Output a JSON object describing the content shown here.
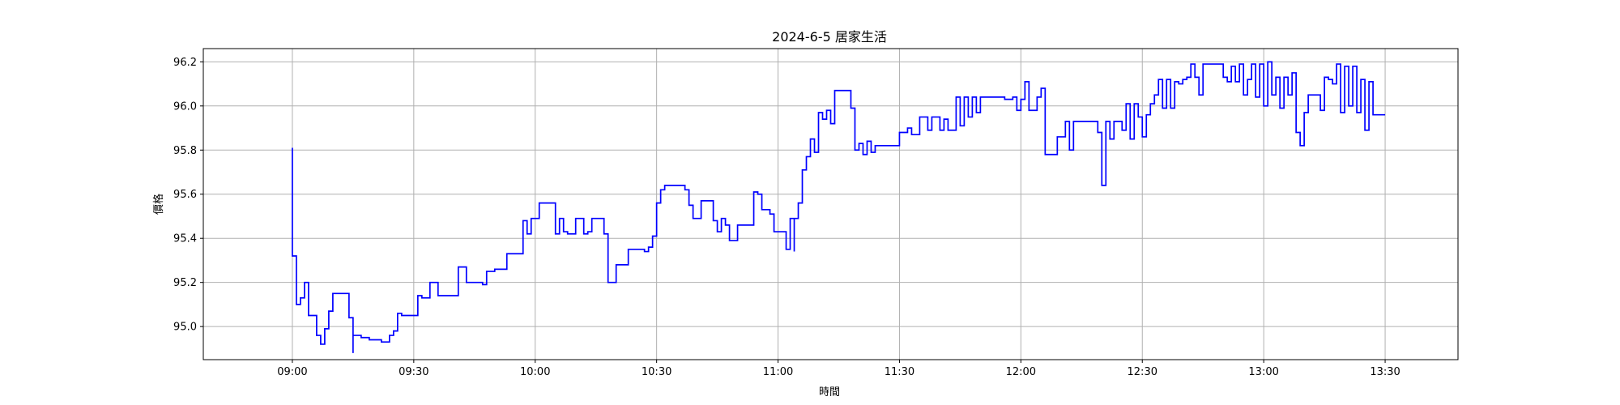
{
  "chart_data": {
    "type": "line",
    "title": "2024-6-5 居家生活",
    "xlabel": "時間",
    "ylabel": "價格",
    "xlim": [
      "08:38",
      "13:48"
    ],
    "ylim": [
      94.85,
      96.26
    ],
    "x_ticks": [
      "09:00",
      "09:30",
      "10:00",
      "10:30",
      "11:00",
      "11:30",
      "12:00",
      "12:30",
      "13:00",
      "13:30"
    ],
    "y_ticks": [
      "95.0",
      "95.2",
      "95.4",
      "95.6",
      "95.8",
      "96.0",
      "96.2"
    ],
    "grid": true,
    "step": true,
    "series": [
      {
        "color": "#0000ff",
        "points": [
          [
            "09:00",
            95.81
          ],
          [
            "09:00",
            95.32
          ],
          [
            "09:01",
            95.25
          ],
          [
            "09:01",
            95.1
          ],
          [
            "09:02",
            95.13
          ],
          [
            "09:03",
            95.2
          ],
          [
            "09:04",
            95.05
          ],
          [
            "09:06",
            94.96
          ],
          [
            "09:07",
            94.95
          ],
          [
            "09:07",
            94.92
          ],
          [
            "09:08",
            94.99
          ],
          [
            "09:09",
            95.07
          ],
          [
            "09:10",
            95.15
          ],
          [
            "09:14",
            95.04
          ],
          [
            "09:15",
            94.88
          ],
          [
            "09:15",
            94.96
          ],
          [
            "09:17",
            94.95
          ],
          [
            "09:19",
            94.94
          ],
          [
            "09:22",
            94.93
          ],
          [
            "09:24",
            94.96
          ],
          [
            "09:25",
            94.98
          ],
          [
            "09:26",
            95.06
          ],
          [
            "09:27",
            95.05
          ],
          [
            "09:31",
            95.14
          ],
          [
            "09:32",
            95.13
          ],
          [
            "09:34",
            95.2
          ],
          [
            "09:36",
            95.14
          ],
          [
            "09:41",
            95.27
          ],
          [
            "09:43",
            95.2
          ],
          [
            "09:47",
            95.19
          ],
          [
            "09:48",
            95.25
          ],
          [
            "09:50",
            95.26
          ],
          [
            "09:53",
            95.33
          ],
          [
            "09:57",
            95.48
          ],
          [
            "09:58",
            95.42
          ],
          [
            "09:59",
            95.49
          ],
          [
            "10:01",
            95.56
          ],
          [
            "10:05",
            95.42
          ],
          [
            "10:06",
            95.49
          ],
          [
            "10:07",
            95.43
          ],
          [
            "10:08",
            95.42
          ],
          [
            "10:10",
            95.49
          ],
          [
            "10:12",
            95.42
          ],
          [
            "10:13",
            95.43
          ],
          [
            "10:14",
            95.49
          ],
          [
            "10:17",
            95.42
          ],
          [
            "10:18",
            95.2
          ],
          [
            "10:20",
            95.28
          ],
          [
            "10:23",
            95.35
          ],
          [
            "10:27",
            95.34
          ],
          [
            "10:28",
            95.36
          ],
          [
            "10:29",
            95.41
          ],
          [
            "10:30",
            95.56
          ],
          [
            "10:31",
            95.62
          ],
          [
            "10:32",
            95.64
          ],
          [
            "10:37",
            95.62
          ],
          [
            "10:38",
            95.55
          ],
          [
            "10:39",
            95.49
          ],
          [
            "10:41",
            95.57
          ],
          [
            "10:44",
            95.48
          ],
          [
            "10:45",
            95.43
          ],
          [
            "10:46",
            95.49
          ],
          [
            "10:47",
            95.46
          ],
          [
            "10:48",
            95.39
          ],
          [
            "10:50",
            95.46
          ],
          [
            "10:54",
            95.61
          ],
          [
            "10:55",
            95.6
          ],
          [
            "10:56",
            95.53
          ],
          [
            "10:58",
            95.51
          ],
          [
            "10:59",
            95.43
          ],
          [
            "11:02",
            95.35
          ],
          [
            "11:03",
            95.49
          ],
          [
            "11:04",
            95.34
          ],
          [
            "11:04",
            95.49
          ],
          [
            "11:05",
            95.56
          ],
          [
            "11:06",
            95.71
          ],
          [
            "11:07",
            95.77
          ],
          [
            "11:08",
            95.85
          ],
          [
            "11:09",
            95.79
          ],
          [
            "11:10",
            95.97
          ],
          [
            "11:11",
            95.94
          ],
          [
            "11:12",
            95.98
          ],
          [
            "11:13",
            95.92
          ],
          [
            "11:14",
            96.07
          ],
          [
            "11:18",
            95.99
          ],
          [
            "11:19",
            95.8
          ],
          [
            "11:20",
            95.83
          ],
          [
            "11:21",
            95.78
          ],
          [
            "11:22",
            95.84
          ],
          [
            "11:23",
            95.79
          ],
          [
            "11:24",
            95.82
          ],
          [
            "11:29",
            95.82
          ],
          [
            "11:30",
            95.88
          ],
          [
            "11:32",
            95.9
          ],
          [
            "11:33",
            95.87
          ],
          [
            "11:35",
            95.95
          ],
          [
            "11:37",
            95.89
          ],
          [
            "11:38",
            95.95
          ],
          [
            "11:40",
            95.89
          ],
          [
            "11:41",
            95.94
          ],
          [
            "11:42",
            95.89
          ],
          [
            "11:44",
            96.04
          ],
          [
            "11:45",
            95.91
          ],
          [
            "11:46",
            96.04
          ],
          [
            "11:47",
            95.95
          ],
          [
            "11:48",
            96.04
          ],
          [
            "11:49",
            95.97
          ],
          [
            "11:50",
            96.04
          ],
          [
            "11:56",
            96.03
          ],
          [
            "11:58",
            96.04
          ],
          [
            "11:59",
            95.98
          ],
          [
            "12:00",
            96.03
          ],
          [
            "12:01",
            96.11
          ],
          [
            "12:02",
            95.98
          ],
          [
            "12:04",
            96.04
          ],
          [
            "12:05",
            96.08
          ],
          [
            "12:06",
            95.78
          ],
          [
            "12:08",
            95.78
          ],
          [
            "12:09",
            95.86
          ],
          [
            "12:11",
            95.93
          ],
          [
            "12:12",
            95.8
          ],
          [
            "12:13",
            95.93
          ],
          [
            "12:19",
            95.88
          ],
          [
            "12:20",
            95.64
          ],
          [
            "12:21",
            95.93
          ],
          [
            "12:22",
            95.85
          ],
          [
            "12:23",
            95.93
          ],
          [
            "12:25",
            95.89
          ],
          [
            "12:26",
            96.01
          ],
          [
            "12:27",
            95.85
          ],
          [
            "12:28",
            96.01
          ],
          [
            "12:29",
            95.95
          ],
          [
            "12:30",
            95.86
          ],
          [
            "12:31",
            95.96
          ],
          [
            "12:32",
            96.01
          ],
          [
            "12:33",
            96.05
          ],
          [
            "12:34",
            96.12
          ],
          [
            "12:35",
            95.99
          ],
          [
            "12:36",
            96.12
          ],
          [
            "12:37",
            95.99
          ],
          [
            "12:38",
            96.11
          ],
          [
            "12:39",
            96.1
          ],
          [
            "12:40",
            96.12
          ],
          [
            "12:41",
            96.13
          ],
          [
            "12:42",
            96.19
          ],
          [
            "12:43",
            96.13
          ],
          [
            "12:44",
            96.05
          ],
          [
            "12:45",
            96.19
          ],
          [
            "12:50",
            96.13
          ],
          [
            "12:51",
            96.11
          ],
          [
            "12:52",
            96.18
          ],
          [
            "12:53",
            96.11
          ],
          [
            "12:54",
            96.19
          ],
          [
            "12:55",
            96.05
          ],
          [
            "12:56",
            96.12
          ],
          [
            "12:57",
            96.19
          ],
          [
            "12:58",
            96.04
          ],
          [
            "12:59",
            96.19
          ],
          [
            "13:00",
            96.0
          ],
          [
            "13:01",
            96.2
          ],
          [
            "13:02",
            96.05
          ],
          [
            "13:03",
            96.13
          ],
          [
            "13:04",
            95.99
          ],
          [
            "13:05",
            96.13
          ],
          [
            "13:06",
            96.05
          ],
          [
            "13:07",
            96.15
          ],
          [
            "13:08",
            95.88
          ],
          [
            "13:09",
            95.82
          ],
          [
            "13:10",
            95.97
          ],
          [
            "13:11",
            96.05
          ],
          [
            "13:14",
            95.98
          ],
          [
            "13:15",
            96.13
          ],
          [
            "13:16",
            96.12
          ],
          [
            "13:17",
            96.1
          ],
          [
            "13:18",
            96.19
          ],
          [
            "13:19",
            95.97
          ],
          [
            "13:20",
            96.18
          ],
          [
            "13:21",
            96.0
          ],
          [
            "13:22",
            96.18
          ],
          [
            "13:23",
            95.97
          ],
          [
            "13:24",
            96.12
          ],
          [
            "13:25",
            95.89
          ],
          [
            "13:26",
            96.11
          ],
          [
            "13:27",
            95.96
          ],
          [
            "13:30",
            95.96
          ]
        ]
      }
    ]
  }
}
